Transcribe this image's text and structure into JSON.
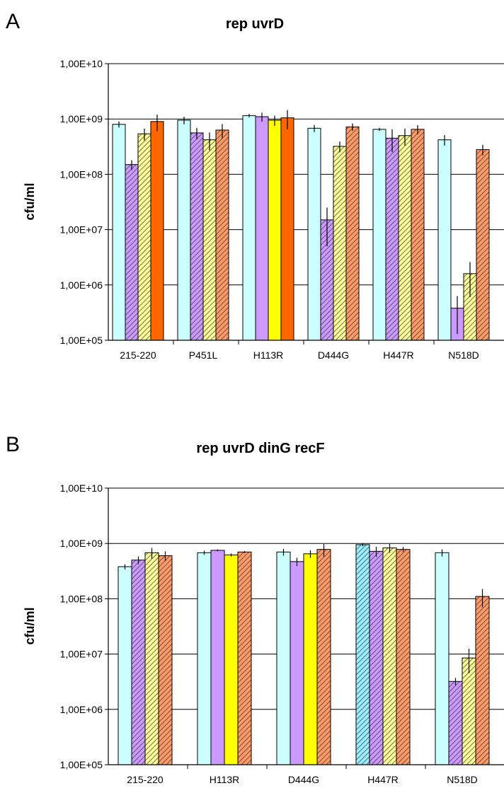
{
  "chart_data": [
    {
      "type": "bar",
      "panel_label": "A",
      "title": "rep uvrD",
      "xlabel": "",
      "ylabel": "cfu/ml",
      "y_scale": "log",
      "ylim": [
        100000,
        10000000000
      ],
      "y_ticks": [
        "1,00E+05",
        "1,00E+06",
        "1,00E+07",
        "1,00E+08",
        "1,00E+09",
        "1,00E+10"
      ],
      "grid": "horizontal",
      "categories": [
        "215-220",
        "P451L",
        "H113R",
        "D444G",
        "H447R",
        "N518D"
      ],
      "bars": [
        [
          {
            "value": 800000000,
            "err": 100000000,
            "color": "#ccffff",
            "hatch": false
          },
          {
            "value": 150000000,
            "err": 30000000,
            "color": "#cc99ff",
            "hatch": true
          },
          {
            "value": 540000000,
            "err": 130000000,
            "color": "#ffff99",
            "hatch": true
          },
          {
            "value": 900000000,
            "err": 300000000,
            "color": "#ff6600",
            "hatch": false
          }
        ],
        [
          {
            "value": 950000000,
            "err": 150000000,
            "color": "#ccffff",
            "hatch": false
          },
          {
            "value": 560000000,
            "err": 130000000,
            "color": "#cc99ff",
            "hatch": true
          },
          {
            "value": 420000000,
            "err": 150000000,
            "color": "#ffff99",
            "hatch": true
          },
          {
            "value": 630000000,
            "err": 180000000,
            "color": "#ff9966",
            "hatch": true
          }
        ],
        [
          {
            "value": 1150000000,
            "err": 80000000,
            "color": "#ccffff",
            "hatch": false
          },
          {
            "value": 1100000000,
            "err": 200000000,
            "color": "#cc99ff",
            "hatch": false
          },
          {
            "value": 950000000,
            "err": 200000000,
            "color": "#ffff00",
            "hatch": false
          },
          {
            "value": 1050000000,
            "err": 400000000,
            "color": "#ff6600",
            "hatch": false
          }
        ],
        [
          {
            "value": 680000000,
            "err": 100000000,
            "color": "#ccffff",
            "hatch": false
          },
          {
            "value": 15000000,
            "err": 10000000,
            "color": "#cc99ff",
            "hatch": true
          },
          {
            "value": 320000000,
            "err": 70000000,
            "color": "#ffff99",
            "hatch": true
          },
          {
            "value": 720000000,
            "err": 110000000,
            "color": "#ff9966",
            "hatch": true
          }
        ],
        [
          {
            "value": 650000000,
            "err": 40000000,
            "color": "#ccffff",
            "hatch": false
          },
          {
            "value": 450000000,
            "err": 200000000,
            "color": "#cc99ff",
            "hatch": true
          },
          {
            "value": 500000000,
            "err": 170000000,
            "color": "#ffff99",
            "hatch": true
          },
          {
            "value": 650000000,
            "err": 120000000,
            "color": "#ff9966",
            "hatch": true
          }
        ],
        [
          {
            "value": 420000000,
            "err": 90000000,
            "color": "#ccffff",
            "hatch": false
          },
          {
            "value": 380000,
            "err": 250000,
            "color": "#cc99ff",
            "hatch": false
          },
          {
            "value": 1600000,
            "err": 1000000,
            "color": "#ffff99",
            "hatch": true
          },
          {
            "value": 280000000,
            "err": 60000000,
            "color": "#ff9966",
            "hatch": true
          }
        ]
      ]
    },
    {
      "type": "bar",
      "panel_label": "B",
      "title": "rep uvrD dinG recF",
      "xlabel": "",
      "ylabel": "cfu/ml",
      "y_scale": "log",
      "ylim": [
        100000,
        10000000000
      ],
      "y_ticks": [
        "1,00E+05",
        "1,00E+06",
        "1,00E+07",
        "1,00E+08",
        "1,00E+09",
        "1,00E+10"
      ],
      "grid": "horizontal",
      "categories": [
        "215-220",
        "H113R",
        "D444G",
        "H447R",
        "N518D"
      ],
      "bars": [
        [
          {
            "value": 380000000,
            "err": 40000000,
            "color": "#ccffff",
            "hatch": false
          },
          {
            "value": 500000000,
            "err": 80000000,
            "color": "#cc99ff",
            "hatch": true
          },
          {
            "value": 680000000,
            "err": 150000000,
            "color": "#ffff99",
            "hatch": true
          },
          {
            "value": 600000000,
            "err": 120000000,
            "color": "#ff9966",
            "hatch": true
          }
        ],
        [
          {
            "value": 680000000,
            "err": 60000000,
            "color": "#ccffff",
            "hatch": false
          },
          {
            "value": 750000000,
            "err": 30000000,
            "color": "#cc99ff",
            "hatch": false
          },
          {
            "value": 620000000,
            "err": 40000000,
            "color": "#ffff00",
            "hatch": false
          },
          {
            "value": 700000000,
            "err": 30000000,
            "color": "#ff9966",
            "hatch": true
          }
        ],
        [
          {
            "value": 700000000,
            "err": 100000000,
            "color": "#ccffff",
            "hatch": false
          },
          {
            "value": 470000000,
            "err": 80000000,
            "color": "#cc99ff",
            "hatch": false
          },
          {
            "value": 650000000,
            "err": 100000000,
            "color": "#ffff00",
            "hatch": false
          },
          {
            "value": 780000000,
            "err": 200000000,
            "color": "#ff9966",
            "hatch": true
          }
        ],
        [
          {
            "value": 950000000,
            "err": 60000000,
            "color": "#99eeff",
            "hatch": true
          },
          {
            "value": 720000000,
            "err": 150000000,
            "color": "#cc99ff",
            "hatch": true
          },
          {
            "value": 830000000,
            "err": 150000000,
            "color": "#ffff99",
            "hatch": true
          },
          {
            "value": 780000000,
            "err": 80000000,
            "color": "#ff9966",
            "hatch": true
          }
        ],
        [
          {
            "value": 680000000,
            "err": 100000000,
            "color": "#ccffff",
            "hatch": false
          },
          {
            "value": 3200000,
            "err": 500000,
            "color": "#cc99ff",
            "hatch": true
          },
          {
            "value": 8500000,
            "err": 4000000,
            "color": "#ffff99",
            "hatch": true
          },
          {
            "value": 110000000,
            "err": 40000000,
            "color": "#ff9966",
            "hatch": true
          }
        ]
      ]
    }
  ]
}
